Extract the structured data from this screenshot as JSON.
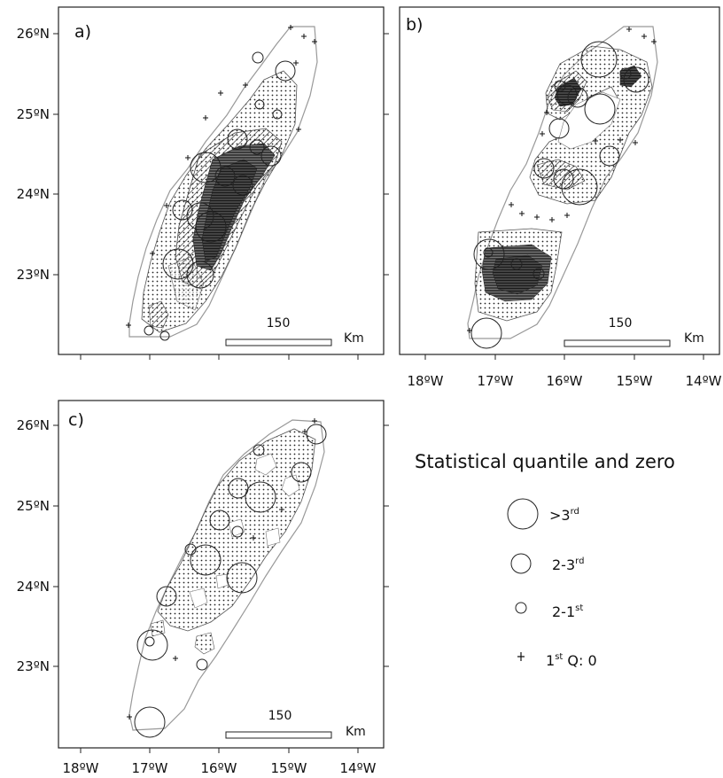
{
  "panels": [
    {
      "label": "a)",
      "lat_ticks": [
        "26ºN",
        "25ºN",
        "24ºN",
        "23ºN"
      ],
      "scale_value": "150",
      "scale_unit": "Km"
    },
    {
      "label": "b)",
      "lat_ticks": [],
      "scale_value": "150",
      "scale_unit": "Km"
    },
    {
      "label": "c)",
      "lat_ticks": [
        "26ºN",
        "25ºN",
        "24ºN",
        "23ºN"
      ],
      "scale_value": "150",
      "scale_unit": "Km"
    }
  ],
  "lon_ticks": [
    "18ºW",
    "17ºW",
    "16ºW",
    "15ºW",
    "14ºW"
  ],
  "legend": {
    "title": "Statistical quantile and zero",
    "items": [
      {
        "symbol": "circle-large",
        "prefix": ">3",
        "sup": "rd",
        "suffix": ""
      },
      {
        "symbol": "circle-medium",
        "prefix": "2-3",
        "sup": "rd",
        "suffix": ""
      },
      {
        "symbol": "circle-small",
        "prefix": "2-1",
        "sup": "st",
        "suffix": ""
      },
      {
        "symbol": "cross",
        "prefix": "1",
        "sup": "st",
        "suffix": " Q: 0"
      }
    ]
  }
}
